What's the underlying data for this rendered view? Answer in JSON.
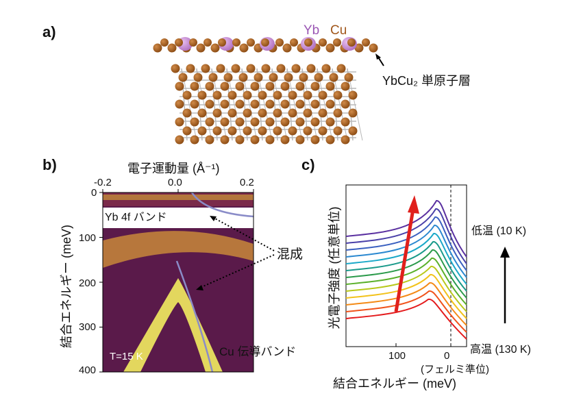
{
  "panel_a": {
    "label": "a)",
    "legend_yb": "Yb",
    "legend_cu": "Cu",
    "layer_label": "YbCu₂ 単原子層",
    "colors": {
      "yb": "#b070c0",
      "cu": "#8a4a12",
      "bond": "#b8b8b8"
    }
  },
  "panel_b": {
    "label": "b)",
    "x_axis_label": "電子運動量 (Å⁻¹)",
    "x_ticks": [
      "-0.2",
      "0.0",
      "0.2"
    ],
    "y_axis_label": "結合エネルギー (meV)",
    "y_ticks": [
      "0",
      "100",
      "200",
      "300",
      "400"
    ],
    "label_yb4f": "Yb 4f バンド",
    "label_mix": "混成",
    "label_cu_band": "Cu 伝導バンド",
    "temperature": "T=15 K",
    "colors": {
      "bg": "#5a1a4a",
      "band": "#f2ec60",
      "fit": "#8a8cc8"
    }
  },
  "panel_c": {
    "label": "c)",
    "y_axis_label": "光電子強度 (任意単位)",
    "x_axis_label": "結合エネルギー (meV)",
    "x_ticks": [
      "100",
      "0"
    ],
    "x_tick_sub": "(フェルミ準位)",
    "low_temp": "低温 (10 K)",
    "high_temp": "高温 (130 K)",
    "curve_colors": [
      "#e41a1c",
      "#f0521a",
      "#f48a16",
      "#f2c21a",
      "#b8c81a",
      "#5ab02a",
      "#2a9a4a",
      "#1a9a8a",
      "#1aa8c8",
      "#2a88d0",
      "#3a60c0",
      "#4a40a8",
      "#5a30a0"
    ],
    "arrow_color": "#e0201c"
  }
}
